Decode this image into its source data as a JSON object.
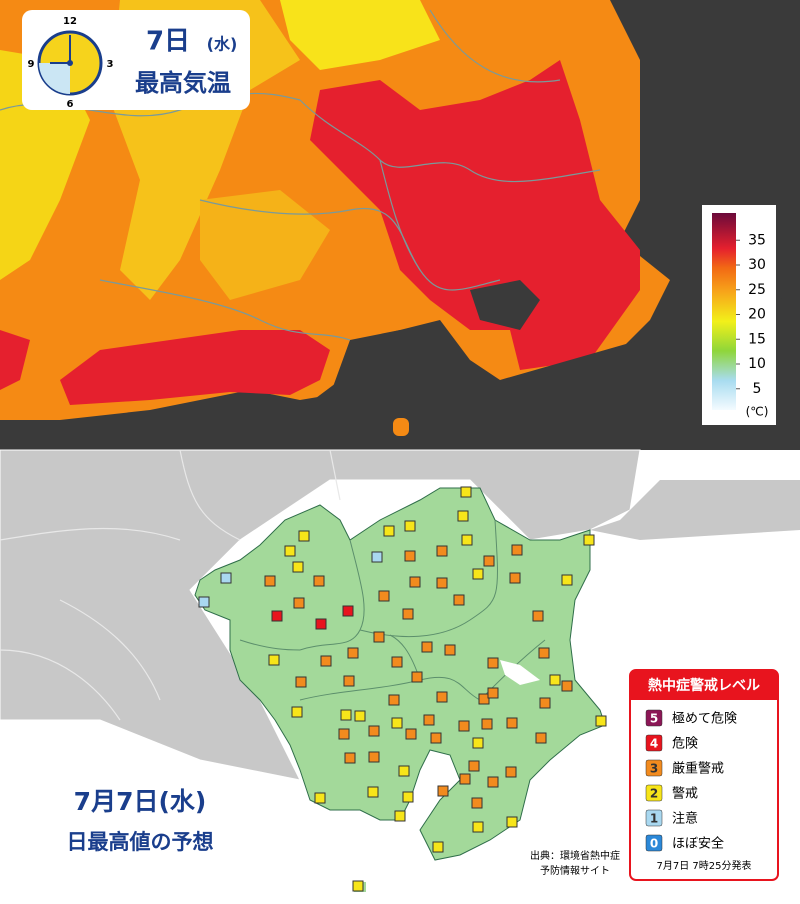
{
  "top_panel": {
    "date": "7日",
    "weekday": "(水)",
    "title": "最高気温",
    "clock_labels": [
      "12",
      "3",
      "6",
      "9"
    ],
    "legend": {
      "ticks": [
        35,
        30,
        25,
        20,
        15,
        10,
        5
      ],
      "unit": "(℃)"
    }
  },
  "bottom_panel": {
    "date": "7月7日(水)",
    "title": "日最高値の予想",
    "legend": {
      "title": "熱中症警戒レベル",
      "levels": [
        {
          "level": 5,
          "label": "極めて危険",
          "color": "#8c1656"
        },
        {
          "level": 4,
          "label": "危険",
          "color": "#e8141e"
        },
        {
          "level": 3,
          "label": "厳重警戒",
          "color": "#f28b1e"
        },
        {
          "level": 2,
          "label": "警戒",
          "color": "#f7e51a"
        },
        {
          "level": 1,
          "label": "注意",
          "color": "#a9d8f0"
        },
        {
          "level": 0,
          "label": "ほぼ安全",
          "color": "#2b88d8"
        }
      ],
      "issued": "7月7日 7時25分発表"
    },
    "source": [
      "出典：環境省熱中症",
      "予防情報サイト"
    ],
    "station_levels": [
      2,
      2,
      2,
      2,
      2,
      2,
      2,
      1,
      3,
      3,
      3,
      3,
      2,
      1,
      3,
      3,
      3,
      3,
      2,
      2,
      2,
      3,
      1,
      3,
      3,
      3,
      4,
      4,
      4,
      3,
      3,
      3,
      3,
      3,
      3,
      3,
      2,
      3,
      3,
      3,
      3,
      3,
      2,
      3,
      3,
      3,
      3,
      3,
      3,
      3,
      2,
      2,
      2,
      2,
      2,
      3,
      3,
      3,
      3,
      3,
      3,
      3,
      3,
      2,
      3,
      3,
      3,
      3,
      2,
      3,
      3,
      3,
      2,
      2,
      2,
      2,
      3,
      3,
      2,
      2,
      2,
      2
    ]
  }
}
